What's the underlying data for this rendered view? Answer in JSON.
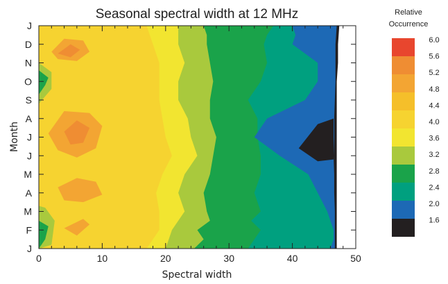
{
  "chart_data": {
    "type": "heatmap",
    "title": "Seasonal spectral width at 12 MHz",
    "xlabel": "Spectral width",
    "ylabel": "Month",
    "xlim": [
      0,
      50
    ],
    "x_ticks": [
      "0",
      "10",
      "20",
      "30",
      "40",
      "50"
    ],
    "month_labels": [
      "J",
      "F",
      "M",
      "A",
      "M",
      "J",
      "J",
      "A",
      "S",
      "O",
      "N",
      "D",
      "J"
    ],
    "legend": {
      "title_line1": "Relative",
      "title_line2": "Occurrence",
      "levels": [
        "6.0",
        "5.6",
        "5.2",
        "4.8",
        "4.4",
        "4.0",
        "3.6",
        "3.2",
        "2.8",
        "2.4",
        "2.0",
        "1.6"
      ],
      "colors": [
        "#e8462e",
        "#ef8d33",
        "#f3a533",
        "#f5bf2a",
        "#f6d330",
        "#f2e530",
        "#a9c93d",
        "#1aa34a",
        "#00a07f",
        "#1d69b5",
        "#231f20"
      ]
    },
    "band_levels": [
      4.2,
      4.45,
      4.6,
      4.55,
      4.25,
      3.75,
      3.45,
      3.05,
      2.75,
      2.5,
      2.25,
      2.05,
      1.7
    ],
    "band_colors": [
      "#f6d330",
      "#f5bf2a",
      "#f5bf2a",
      "#f5bf2a",
      "#f6d330",
      "#f2e530",
      "#a9c93d",
      "#1aa34a",
      "#1aa34a",
      "#00a07f",
      "#00a07f",
      "#1d69b5",
      "#231f20"
    ],
    "band_x_boundaries": [
      {
        "months": [
          0,
          0.5,
          1,
          1.5,
          2,
          3,
          4,
          5,
          6,
          7,
          8,
          9,
          10,
          11,
          11.5,
          12
        ],
        "x": [
          24.5,
          26,
          25,
          27,
          26.5,
          26,
          27,
          27.5,
          28,
          27,
          27,
          27.5,
          27,
          26.5,
          26.5,
          26
        ]
      },
      {
        "months": [
          0,
          0.5,
          1,
          1.5,
          2,
          3,
          4,
          5,
          6,
          7,
          8,
          9,
          10,
          11,
          11.5,
          12
        ],
        "x": [
          33,
          34,
          35,
          33.5,
          35,
          34,
          35,
          35,
          34.5,
          34.5,
          33,
          35,
          36,
          35.5,
          36,
          37
        ]
      },
      {
        "months": [
          0,
          0.5,
          1,
          1.5,
          2,
          3,
          4,
          5,
          6,
          7,
          8,
          9,
          10,
          11,
          11.5,
          12
        ],
        "x": [
          46,
          46.5,
          46.5,
          46,
          45.5,
          44,
          42.5,
          38,
          34,
          36,
          42,
          44,
          44,
          40,
          40.5,
          40
        ]
      },
      {
        "months": [
          0,
          0.5,
          1,
          1.5,
          2,
          3,
          4,
          5,
          6,
          7,
          8,
          9,
          10,
          11,
          11.5,
          12
        ],
        "x": [
          46.7,
          46.7,
          46.7,
          46.7,
          46.7,
          46.6,
          46.6,
          46.5,
          46.6,
          46.6,
          46.7,
          46.8,
          46.8,
          46.8,
          46.9,
          47
        ]
      },
      {
        "months": [
          0,
          0.5,
          1,
          1.5,
          2,
          3,
          4,
          5,
          6,
          7,
          8,
          9,
          10,
          11,
          11.5,
          12
        ],
        "x": [
          47,
          47,
          47,
          47,
          47,
          47,
          47,
          47,
          47,
          47,
          47,
          47,
          47.2,
          47.2,
          47.3,
          47.4
        ]
      }
    ],
    "left_bands": [
      {
        "color": "#f2e530",
        "months": [
          0,
          1,
          2,
          3,
          4,
          5,
          6,
          7,
          8,
          9,
          10,
          11,
          12
        ],
        "x": [
          17,
          19,
          19,
          18.5,
          19.5,
          21,
          20,
          19.5,
          19,
          19,
          19,
          18,
          17
        ]
      },
      {
        "color": "#a9c93d",
        "months": [
          0,
          1,
          2,
          3,
          4,
          5,
          6,
          7,
          8,
          9,
          10,
          11,
          12
        ],
        "x": [
          20,
          21,
          23,
          22,
          23,
          25,
          24,
          23.5,
          22,
          22,
          23,
          22,
          22
        ]
      }
    ],
    "hot_spots": [
      {
        "color": "#f3a533",
        "points": [
          [
            2,
            10.6
          ],
          [
            4,
            11.3
          ],
          [
            7,
            11.2
          ],
          [
            8,
            10.6
          ],
          [
            6,
            10.1
          ],
          [
            3,
            10.2
          ]
        ]
      },
      {
        "color": "#f3a533",
        "points": [
          [
            1.5,
            6.2
          ],
          [
            4,
            7.4
          ],
          [
            8,
            7.3
          ],
          [
            10,
            6.6
          ],
          [
            9,
            5.4
          ],
          [
            6,
            4.9
          ],
          [
            3,
            5.3
          ]
        ]
      },
      {
        "color": "#f3a533",
        "points": [
          [
            3,
            3.3
          ],
          [
            6,
            3.8
          ],
          [
            9,
            3.6
          ],
          [
            10,
            2.9
          ],
          [
            7,
            2.5
          ],
          [
            4,
            2.6
          ]
        ]
      },
      {
        "color": "#f3a533",
        "points": [
          [
            4,
            1.1
          ],
          [
            7,
            1.6
          ],
          [
            8,
            1.3
          ],
          [
            6,
            0.7
          ]
        ]
      },
      {
        "color": "#ef8d33",
        "points": [
          [
            3,
            10.5
          ],
          [
            5,
            11.0
          ],
          [
            6.5,
            10.7
          ],
          [
            5,
            10.3
          ]
        ]
      },
      {
        "color": "#ef8d33",
        "points": [
          [
            4,
            6.3
          ],
          [
            6,
            6.9
          ],
          [
            8,
            6.5
          ],
          [
            7,
            5.7
          ],
          [
            5,
            5.6
          ]
        ]
      }
    ],
    "edge_patches": [
      {
        "color": "#1aa34a",
        "points": [
          [
            0,
            8.3
          ],
          [
            1,
            8.8
          ],
          [
            1.5,
            9.2
          ],
          [
            0,
            9.6
          ]
        ]
      },
      {
        "color": "#1aa34a",
        "points": [
          [
            0,
            0
          ],
          [
            1,
            0.5
          ],
          [
            1.5,
            1.2
          ],
          [
            0,
            1.5
          ]
        ]
      },
      {
        "color": "#a9c93d",
        "points": [
          [
            0,
            0
          ],
          [
            2,
            0.2
          ],
          [
            2.5,
            1.5
          ],
          [
            1,
            2.2
          ],
          [
            0,
            2.3
          ]
        ]
      },
      {
        "color": "#a9c93d",
        "points": [
          [
            0,
            7.8
          ],
          [
            2,
            8.6
          ],
          [
            2,
            9.5
          ],
          [
            0,
            10
          ]
        ]
      }
    ]
  }
}
